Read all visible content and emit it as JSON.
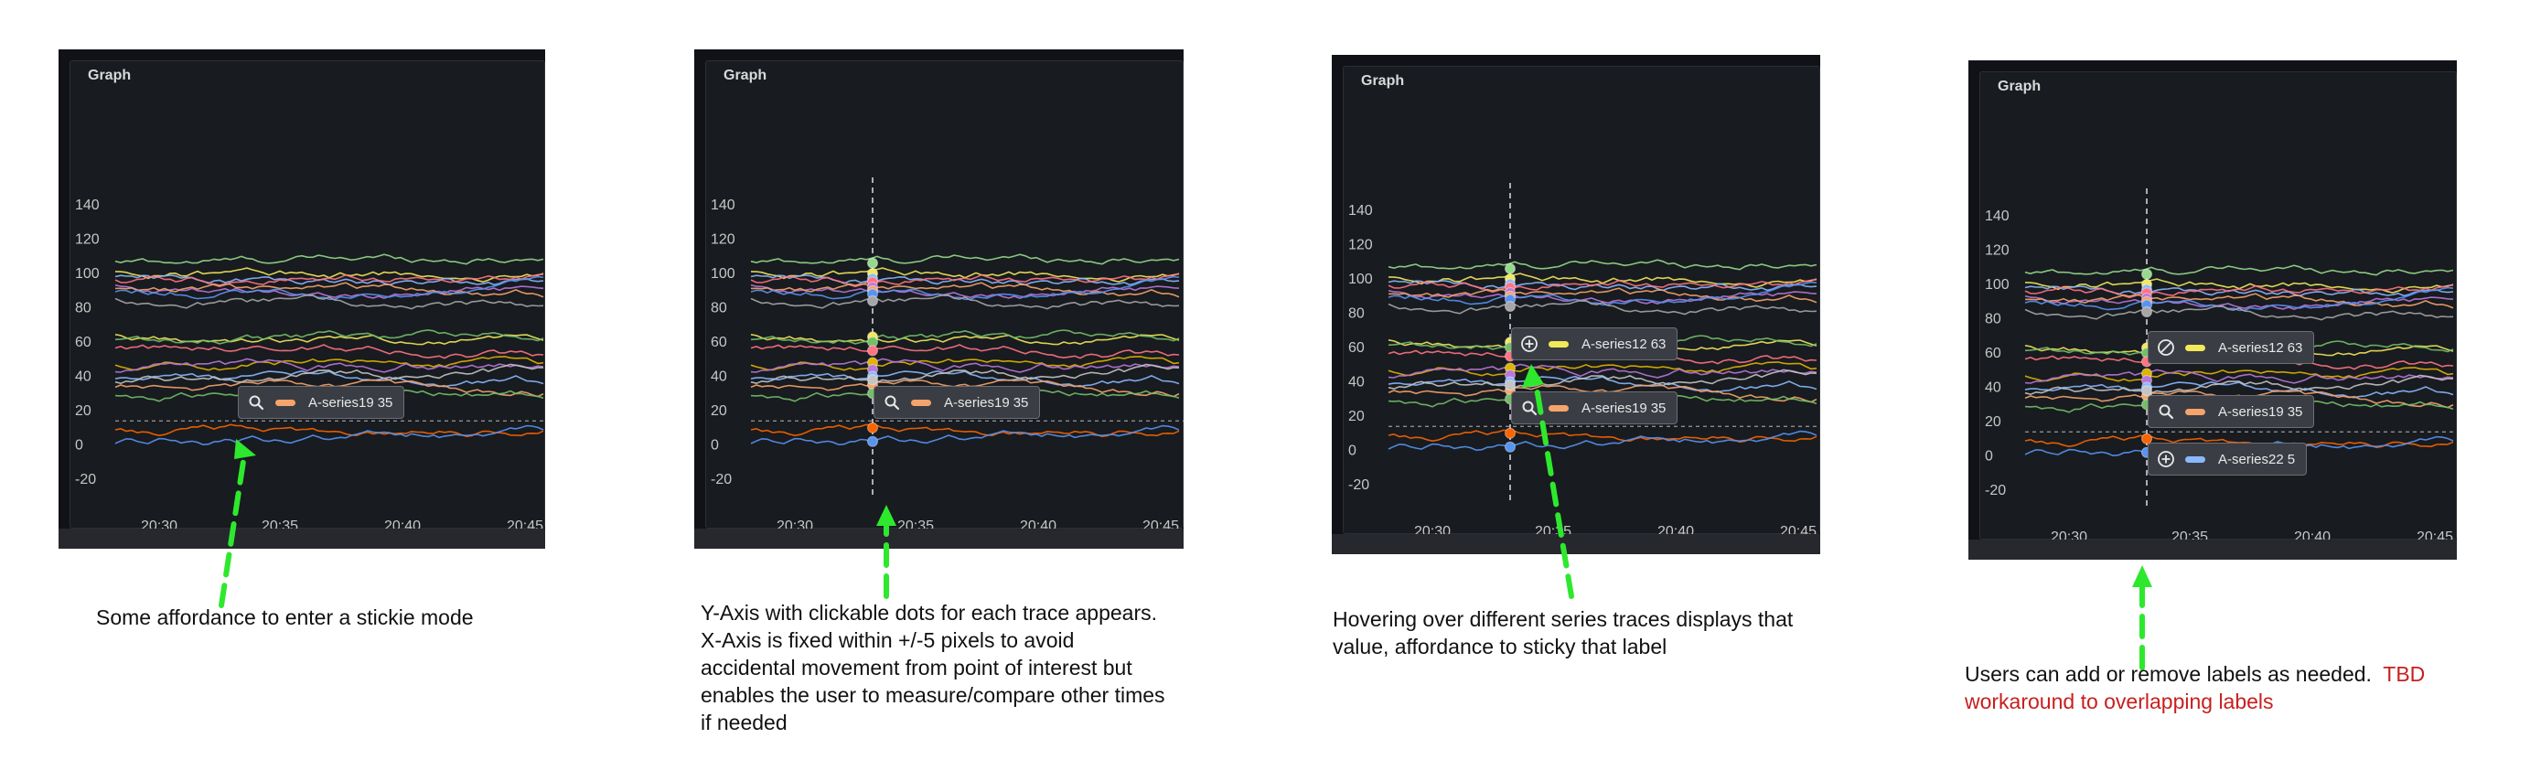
{
  "panels": [
    {
      "title": "Graph",
      "chips": [
        {
          "icon": "search-icon",
          "series": "A-series19",
          "value": "35",
          "color": "#f5a46b"
        }
      ]
    },
    {
      "title": "Graph",
      "chips": [
        {
          "icon": "search-icon",
          "series": "A-series19",
          "value": "35",
          "color": "#f5a46b"
        }
      ]
    },
    {
      "title": "Graph",
      "chips": [
        {
          "icon": "plus-circle-icon",
          "series": "A-series12",
          "value": "63",
          "color": "#f2e85a"
        },
        {
          "icon": "search-icon",
          "series": "A-series19",
          "value": "35",
          "color": "#f5a46b"
        }
      ]
    },
    {
      "title": "Graph",
      "chips": [
        {
          "icon": "remove-circle-icon",
          "series": "A-series12",
          "value": "63",
          "color": "#f2e85a"
        },
        {
          "icon": "search-icon",
          "series": "A-series19",
          "value": "35",
          "color": "#f5a46b"
        },
        {
          "icon": "plus-circle-icon",
          "series": "A-series22",
          "value": "5",
          "color": "#8ab8ff"
        }
      ]
    }
  ],
  "chart_data": {
    "type": "line",
    "y_ticks": [
      "140",
      "120",
      "100",
      "80",
      "60",
      "40",
      "20",
      "0",
      "-20"
    ],
    "x_ticks": [
      "20:30",
      "20:35",
      "20:40",
      "20:45"
    ],
    "ylim": [
      -20,
      140
    ],
    "threshold": 14,
    "series": [
      {
        "color": "#96d98d",
        "base": 106
      },
      {
        "color": "#f2e85a",
        "base": 100
      },
      {
        "color": "#8ab8ff",
        "base": 97
      },
      {
        "color": "#ff7383",
        "base": 95
      },
      {
        "color": "#b877d9",
        "base": 92
      },
      {
        "color": "#f5a46b",
        "base": 90
      },
      {
        "color": "#5794f2",
        "base": 88
      },
      {
        "color": "#a6a6a6",
        "base": 84
      },
      {
        "color": "#f2e85a",
        "base": 63
      },
      {
        "color": "#73bf69",
        "base": 60
      },
      {
        "color": "#ff7383",
        "base": 55
      },
      {
        "color": "#e0b400",
        "base": 48
      },
      {
        "color": "#b877d9",
        "base": 44
      },
      {
        "color": "#8ab8ff",
        "base": 40
      },
      {
        "color": "#f5a46b",
        "base": 35
      },
      {
        "color": "#c4c4c4",
        "base": 38
      },
      {
        "color": "#73bf69",
        "base": 30
      },
      {
        "color": "#fa6400",
        "base": 10
      },
      {
        "color": "#5794f2",
        "base": 2
      }
    ]
  },
  "captions": [
    {
      "lines": [
        "Some affordance to enter a stickie mode"
      ]
    },
    {
      "lines": [
        "Y-Axis with clickable dots for each trace appears.",
        "X-Axis is fixed within +/-5 pixels to avoid",
        "accidental movement from point of interest but",
        "enables the user to measure/compare other times",
        "if needed"
      ]
    },
    {
      "lines": [
        "Hovering over different series traces displays that",
        "value, affordance to sticky that label"
      ]
    },
    {
      "line1": "Users can add or remove labels as needed.",
      "line1_red": "TBD",
      "line2_red": "workaround to overlapping labels"
    }
  ]
}
